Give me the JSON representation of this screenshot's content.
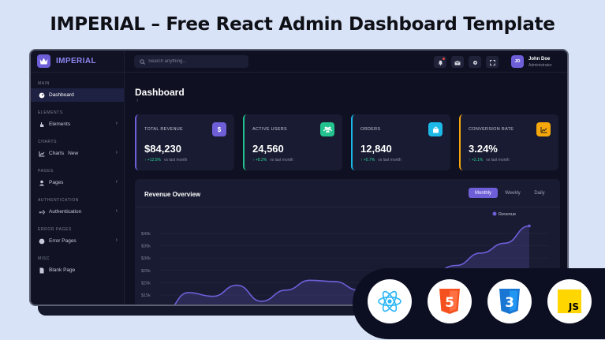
{
  "headline": "IMPERIAL – Free React Admin Dashboard Template",
  "brand": {
    "name": "IMPERIAL",
    "logo_icon": "crown-icon",
    "accent": "#6e5fd8"
  },
  "sidebar": {
    "sections": [
      {
        "label": "MAIN",
        "items": [
          {
            "label": "Dashboard",
            "icon": "dashboard-icon",
            "active": true,
            "chevron": false
          }
        ]
      },
      {
        "label": "ELEMENTS",
        "items": [
          {
            "label": "Elements",
            "icon": "hand-icon",
            "chevron": true
          }
        ]
      },
      {
        "label": "CHARTS",
        "items": [
          {
            "label": "Charts",
            "badge": "New",
            "icon": "chart-icon",
            "chevron": true
          }
        ]
      },
      {
        "label": "PAGES",
        "items": [
          {
            "label": "Pages",
            "icon": "user-icon",
            "chevron": true
          }
        ]
      },
      {
        "label": "AUTHENTICATION",
        "items": [
          {
            "label": "Authentication",
            "icon": "key-icon",
            "chevron": true
          }
        ]
      },
      {
        "label": "ERROR PAGES",
        "items": [
          {
            "label": "Error Pages",
            "icon": "error-icon",
            "chevron": true
          }
        ]
      },
      {
        "label": "MISC",
        "items": [
          {
            "label": "Blank Page",
            "icon": "file-icon",
            "chevron": false
          }
        ]
      }
    ]
  },
  "topbar": {
    "search_placeholder": "Search anything...",
    "user": {
      "initials": "JD",
      "name": "John Doe",
      "role": "Administrator"
    }
  },
  "page": {
    "title": "Dashboard",
    "breadcrumb": "›"
  },
  "stats": [
    {
      "label": "TOTAL REVENUE",
      "value": "$84,230",
      "delta": "↑ +12.5%",
      "sub": "vs last month",
      "accent": "#6e5fd8",
      "icon_bg": "#6e5fd8",
      "icon": "dollar-icon",
      "glyph": "$"
    },
    {
      "label": "ACTIVE USERS",
      "value": "24,560",
      "delta": "↑ +8.2%",
      "sub": "vs last month",
      "accent": "#22c38e",
      "icon_bg": "#22c38e",
      "icon": "users-icon",
      "glyph": ""
    },
    {
      "label": "ORDERS",
      "value": "12,840",
      "delta": "↑ +5.7%",
      "sub": "vs last month",
      "accent": "#1cb8e8",
      "icon_bg": "#1cb8e8",
      "icon": "bag-icon",
      "glyph": ""
    },
    {
      "label": "CONVERSION RATE",
      "value": "3.24%",
      "delta": "↑ +2.1%",
      "sub": "vs last month",
      "accent": "#f5a70c",
      "icon_bg": "#f5a70c",
      "icon": "trend-icon",
      "glyph": ""
    }
  ],
  "revenue": {
    "title": "Revenue Overview",
    "tabs": [
      {
        "label": "Monthly",
        "active": true
      },
      {
        "label": "Weekly"
      },
      {
        "label": "Daily"
      }
    ]
  },
  "chart_data": {
    "type": "line",
    "title": "Revenue Overview",
    "yticks": [
      "$40k",
      "$35k",
      "$30k",
      "$25k",
      "$20k",
      "$15k"
    ],
    "ylim": [
      8000,
      46000
    ],
    "grid": true,
    "legend_position": "top-right",
    "series": [
      {
        "name": "Revenue",
        "color": "#6e5fd8",
        "style": "solid",
        "values": [
          8000,
          16000,
          14500,
          19000,
          12500,
          17000,
          21000,
          20500,
          17000,
          23000,
          21000,
          24000,
          27000,
          32000,
          36000,
          43000
        ]
      },
      {
        "color": "#8f86e8",
        "style": "dashed",
        "values": [
          8500,
          null,
          null,
          null,
          null,
          null,
          null,
          9500,
          11000,
          12000,
          null,
          null,
          null,
          null,
          null,
          null
        ]
      }
    ]
  },
  "tech_badges": [
    {
      "name": "react-logo-icon"
    },
    {
      "name": "html5-logo-icon",
      "text": "5"
    },
    {
      "name": "css3-logo-icon",
      "text": "3"
    },
    {
      "name": "js-logo-icon",
      "text": "JS"
    }
  ]
}
